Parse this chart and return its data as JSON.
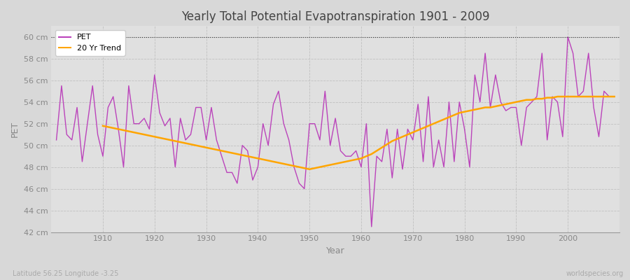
{
  "title": "Yearly Total Potential Evapotranspiration 1901 - 2009",
  "xlabel": "Year",
  "ylabel": "PET",
  "subtitle_left": "Latitude 56.25 Longitude -3.25",
  "subtitle_right": "worldspecies.org",
  "pet_color": "#bb44bb",
  "trend_color": "#FFA500",
  "bg_color": "#d8d8d8",
  "plot_bg_color": "#e0e0e0",
  "ylim": [
    42,
    61
  ],
  "xlim": [
    1900,
    2010
  ],
  "yticks": [
    42,
    44,
    46,
    48,
    50,
    52,
    54,
    56,
    58,
    60
  ],
  "ytick_labels": [
    "42 cm",
    "44 cm",
    "46 cm",
    "48 cm",
    "50 cm",
    "52 cm",
    "54 cm",
    "56 cm",
    "58 cm",
    "60 cm"
  ],
  "years": [
    1901,
    1902,
    1903,
    1904,
    1905,
    1906,
    1907,
    1908,
    1909,
    1910,
    1911,
    1912,
    1913,
    1914,
    1915,
    1916,
    1917,
    1918,
    1919,
    1920,
    1921,
    1922,
    1923,
    1924,
    1925,
    1926,
    1927,
    1928,
    1929,
    1930,
    1931,
    1932,
    1933,
    1934,
    1935,
    1936,
    1937,
    1938,
    1939,
    1940,
    1941,
    1942,
    1943,
    1944,
    1945,
    1946,
    1947,
    1948,
    1949,
    1950,
    1951,
    1952,
    1953,
    1954,
    1955,
    1956,
    1957,
    1958,
    1959,
    1960,
    1961,
    1962,
    1963,
    1964,
    1965,
    1966,
    1967,
    1968,
    1969,
    1970,
    1971,
    1972,
    1973,
    1974,
    1975,
    1976,
    1977,
    1978,
    1979,
    1980,
    1981,
    1982,
    1983,
    1984,
    1985,
    1986,
    1987,
    1988,
    1989,
    1990,
    1991,
    1992,
    1993,
    1994,
    1995,
    1996,
    1997,
    1998,
    1999,
    2000,
    2001,
    2002,
    2003,
    2004,
    2005,
    2006,
    2007,
    2008,
    2009
  ],
  "pet": [
    50.5,
    55.5,
    51.0,
    50.5,
    53.5,
    48.5,
    52.0,
    55.5,
    51.0,
    49.0,
    53.5,
    54.5,
    51.5,
    48.0,
    55.5,
    52.0,
    52.0,
    52.5,
    51.5,
    56.5,
    53.0,
    51.8,
    52.5,
    48.0,
    52.5,
    50.5,
    51.0,
    53.5,
    53.5,
    50.5,
    53.5,
    50.5,
    49.0,
    47.5,
    47.5,
    46.5,
    50.0,
    49.5,
    46.8,
    48.0,
    52.0,
    50.0,
    53.8,
    55.0,
    52.0,
    50.5,
    48.0,
    46.5,
    46.0,
    52.0,
    52.0,
    50.5,
    55.0,
    50.0,
    52.5,
    49.5,
    49.0,
    49.0,
    49.5,
    48.0,
    52.0,
    42.5,
    49.0,
    48.5,
    51.5,
    47.0,
    51.5,
    47.8,
    51.5,
    50.5,
    53.8,
    48.5,
    54.5,
    48.0,
    50.5,
    48.0,
    54.0,
    48.5,
    54.0,
    51.5,
    48.0,
    56.5,
    54.0,
    58.5,
    53.5,
    56.5,
    54.0,
    53.2,
    53.5,
    53.5,
    50.0,
    53.5,
    54.0,
    54.5,
    58.5,
    50.5,
    54.5,
    54.0,
    50.8,
    60.0,
    58.5,
    54.5,
    55.0,
    58.5,
    53.5,
    50.8,
    55.0,
    54.5,
    54.5
  ],
  "trend_start_year": 1910,
  "trend": [
    51.8,
    51.7,
    51.6,
    51.5,
    51.4,
    51.3,
    51.2,
    51.1,
    51.0,
    50.9,
    50.8,
    50.7,
    50.6,
    50.5,
    50.4,
    50.3,
    50.2,
    50.1,
    50.0,
    49.9,
    49.8,
    49.7,
    49.6,
    49.5,
    49.4,
    49.3,
    49.2,
    49.1,
    49.0,
    48.9,
    48.8,
    48.7,
    48.6,
    48.5,
    48.4,
    48.3,
    48.2,
    48.1,
    48.0,
    47.9,
    47.8,
    47.9,
    48.0,
    48.1,
    48.2,
    48.3,
    48.4,
    48.5,
    48.6,
    48.7,
    48.8,
    49.0,
    49.2,
    49.5,
    49.8,
    50.1,
    50.4,
    50.6,
    50.8,
    51.0,
    51.2,
    51.4,
    51.6,
    51.8,
    52.0,
    52.2,
    52.4,
    52.6,
    52.8,
    53.0,
    53.1,
    53.2,
    53.3,
    53.4,
    53.5,
    53.5,
    53.6,
    53.7,
    53.8,
    53.9,
    54.0,
    54.1,
    54.2,
    54.2,
    54.3,
    54.3,
    54.4,
    54.4,
    54.5,
    54.5,
    54.5,
    54.5,
    54.5,
    54.5,
    54.5,
    54.5,
    54.5,
    54.5,
    54.5,
    54.5
  ]
}
